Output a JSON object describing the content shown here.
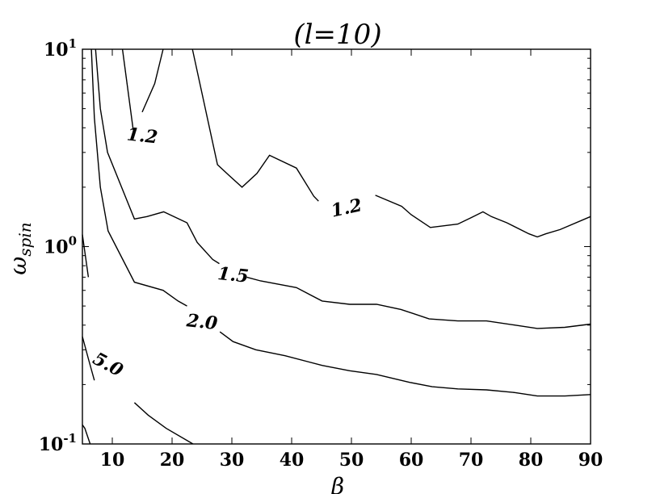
{
  "chart_data": {
    "type": "contour",
    "title": "(l=10)",
    "xlabel": "β",
    "ylabel": "ω_spin",
    "xlim": [
      5,
      90
    ],
    "ylim": [
      0.1,
      10
    ],
    "y_scale": "log",
    "x_ticks": [
      "10",
      "20",
      "30",
      "40",
      "50",
      "60",
      "70",
      "80",
      "90"
    ],
    "y_ticks": [
      {
        "value": 0.1,
        "label": "10",
        "exp": "-1"
      },
      {
        "value": 1,
        "label": "10",
        "exp": "0"
      },
      {
        "value": 10,
        "label": "10",
        "exp": "1"
      }
    ],
    "series": [
      {
        "level": "1.2",
        "segments": [
          [
            [
              13.5,
              3.9
            ],
            [
              11.7,
              10.0
            ]
          ],
          [
            [
              15.0,
              4.8
            ],
            [
              17.1,
              6.7
            ],
            [
              18.5,
              10.0
            ]
          ],
          [
            [
              23.4,
              10.0
            ],
            [
              27.6,
              2.6
            ],
            [
              29.5,
              2.3
            ],
            [
              31.7,
              2.0
            ],
            [
              34.2,
              2.35
            ],
            [
              36.3,
              2.9
            ],
            [
              40.8,
              2.5
            ],
            [
              43.7,
              1.8
            ],
            [
              44.5,
              1.7
            ]
          ],
          [
            [
              54.0,
              1.82
            ],
            [
              58.4,
              1.6
            ],
            [
              60.0,
              1.45
            ],
            [
              63.2,
              1.25
            ],
            [
              67.8,
              1.3
            ],
            [
              70.0,
              1.4
            ],
            [
              72.0,
              1.5
            ],
            [
              73.4,
              1.42
            ],
            [
              76.0,
              1.32
            ],
            [
              79.7,
              1.16
            ],
            [
              81.1,
              1.12
            ],
            [
              82.5,
              1.16
            ],
            [
              84.9,
              1.22
            ],
            [
              90.0,
              1.42
            ]
          ]
        ]
      },
      {
        "level": "1.5",
        "segments": [
          [
            [
              7.2,
              10.0
            ],
            [
              8.0,
              5.0
            ],
            [
              9.2,
              3.0
            ],
            [
              13.7,
              1.38
            ],
            [
              15.8,
              1.42
            ],
            [
              18.6,
              1.5
            ],
            [
              22.5,
              1.32
            ],
            [
              24.2,
              1.05
            ],
            [
              26.8,
              0.86
            ],
            [
              27.9,
              0.82
            ]
          ],
          [
            [
              32.5,
              0.7
            ],
            [
              34.8,
              0.67
            ],
            [
              40.8,
              0.62
            ],
            [
              45.1,
              0.53
            ],
            [
              49.7,
              0.51
            ],
            [
              54.2,
              0.51
            ],
            [
              58.3,
              0.48
            ],
            [
              63.0,
              0.43
            ],
            [
              67.8,
              0.42
            ],
            [
              72.6,
              0.42
            ],
            [
              77.4,
              0.4
            ],
            [
              81.1,
              0.385
            ],
            [
              85.7,
              0.39
            ],
            [
              90.0,
              0.405
            ]
          ]
        ]
      },
      {
        "level": "2.0",
        "segments": [
          [
            [
              6.5,
              10.0
            ],
            [
              7.0,
              4.5
            ],
            [
              8.0,
              2.0
            ],
            [
              9.3,
              1.2
            ],
            [
              13.7,
              0.66
            ],
            [
              18.5,
              0.6
            ],
            [
              21.0,
              0.53
            ],
            [
              22.5,
              0.5
            ]
          ],
          [
            [
              28.0,
              0.37
            ],
            [
              30.2,
              0.33
            ],
            [
              34.0,
              0.3
            ],
            [
              38.9,
              0.28
            ],
            [
              45.1,
              0.25
            ],
            [
              49.7,
              0.235
            ],
            [
              54.2,
              0.225
            ],
            [
              59.8,
              0.205
            ],
            [
              63.5,
              0.195
            ],
            [
              67.8,
              0.19
            ],
            [
              72.6,
              0.188
            ],
            [
              77.4,
              0.182
            ],
            [
              81.1,
              0.175
            ],
            [
              85.7,
              0.175
            ],
            [
              90.0,
              0.178
            ]
          ]
        ]
      },
      {
        "level": "5.0",
        "segments": [
          [
            [
              5.0,
              1.15
            ],
            [
              6.0,
              0.7
            ]
          ],
          [
            [
              5.0,
              0.35
            ],
            [
              6.0,
              0.27
            ],
            [
              7.0,
              0.21
            ]
          ],
          [
            [
              6.3,
              0.1
            ],
            [
              5.4,
              0.12
            ],
            [
              5.0,
              0.125
            ]
          ],
          [
            [
              13.7,
              0.162
            ],
            [
              16.0,
              0.14
            ],
            [
              19.0,
              0.12
            ],
            [
              23.5,
              0.1
            ]
          ]
        ]
      }
    ],
    "contour_labels": [
      {
        "text": "1.2",
        "x": 15.0,
        "y": 3.6,
        "rotation": 6
      },
      {
        "text": "1.2",
        "x": 49.2,
        "y": 1.55,
        "rotation": -12
      },
      {
        "text": "1.5",
        "x": 30.2,
        "y": 0.71,
        "rotation": 6
      },
      {
        "text": "2.0",
        "x": 25.0,
        "y": 0.41,
        "rotation": 6
      },
      {
        "text": "5.0",
        "x": 9.2,
        "y": 0.25,
        "rotation": 28
      }
    ]
  }
}
